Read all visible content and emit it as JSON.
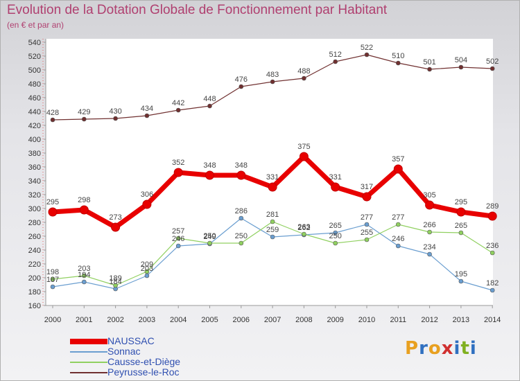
{
  "title": "Evolution de la Dotation Globale de Fonctionnement par Habitant",
  "subtitle": "(en € et par an)",
  "logo": {
    "text": "Proxiti",
    "colors": [
      "#e8a020",
      "#3070c0",
      "#e8a020",
      "#d03030",
      "#3070c0",
      "#80b020",
      "#3070c0"
    ]
  },
  "chart_data": {
    "type": "line",
    "x": [
      "2000",
      "2001",
      "2002",
      "2003",
      "2004",
      "2005",
      "2006",
      "2007",
      "2008",
      "2009",
      "2010",
      "2011",
      "2012",
      "2013",
      "2014"
    ],
    "ylim": [
      160,
      540
    ],
    "yticks": [
      160,
      180,
      200,
      220,
      240,
      260,
      280,
      300,
      320,
      340,
      360,
      380,
      400,
      420,
      440,
      460,
      480,
      500,
      520,
      540
    ],
    "grid": false,
    "legend_position": "bottom-left",
    "series": [
      {
        "name": "NAUSSAC",
        "color": "#e80000",
        "values": [
          295,
          298,
          273,
          306,
          352,
          348,
          348,
          331,
          375,
          331,
          317,
          357,
          305,
          295,
          289
        ]
      },
      {
        "name": "Sonnac",
        "color": "#6a9ed0",
        "values": [
          187,
          194,
          184,
          203,
          246,
          249,
          286,
          259,
          262,
          265,
          277,
          246,
          234,
          195,
          182
        ]
      },
      {
        "name": "Causse-et-Diège",
        "color": "#90d060",
        "values": [
          198,
          203,
          189,
          209,
          257,
          250,
          250,
          281,
          263,
          250,
          255,
          277,
          266,
          265,
          236
        ]
      },
      {
        "name": "Peyrusse-le-Roc",
        "color": "#703030",
        "values": [
          428,
          429,
          430,
          434,
          442,
          448,
          476,
          483,
          488,
          512,
          522,
          510,
          501,
          504,
          502
        ]
      }
    ]
  }
}
